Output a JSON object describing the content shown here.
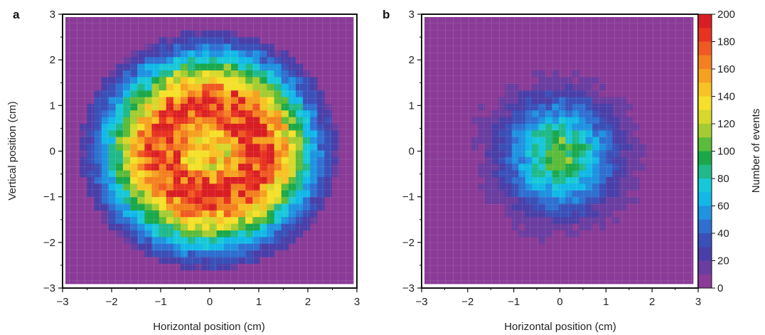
{
  "chart_data": [
    {
      "panel": "a",
      "type": "heatmap",
      "xlabel": "Horizontal position  (cm)",
      "ylabel": "Vertical position (cm)",
      "xlim": [
        -3,
        3
      ],
      "ylim": [
        -3,
        3
      ],
      "x_ticks": [
        "−3",
        "−2",
        "−1",
        "0",
        "1",
        "2",
        "3"
      ],
      "y_ticks": [
        "3",
        "2",
        "1",
        "0",
        "−1",
        "−2",
        "−3"
      ],
      "distribution": {
        "shape": "ring",
        "peak_value": 185,
        "ring_radius_cm": 1.0,
        "center_value": 150,
        "width_cm": 0.8,
        "background": 0
      },
      "grid": true
    },
    {
      "panel": "b",
      "type": "heatmap",
      "xlabel": "Horizontal position  (cm)",
      "ylabel": "",
      "xlim": [
        -3,
        3
      ],
      "ylim": [
        -3,
        3
      ],
      "x_ticks": [
        "−3",
        "−2",
        "−1",
        "0",
        "1",
        "2",
        "3"
      ],
      "y_ticks": [
        "3",
        "2",
        "1",
        "0",
        "−1",
        "−2",
        "−3"
      ],
      "distribution": {
        "shape": "gaussian",
        "peak_value": 100,
        "center_cm": [
          0.0,
          -0.1
        ],
        "sigma_cm": 0.85,
        "background": 0
      },
      "grid": true
    }
  ],
  "colorbar": {
    "label": "Number of events",
    "min": 0,
    "max": 200,
    "ticks": [
      "200",
      "180",
      "160",
      "140",
      "120",
      "100",
      "80",
      "60",
      "40",
      "20",
      "0"
    ],
    "colors": [
      "#8a3b97",
      "#6a3da0",
      "#4a3fa8",
      "#3a50b8",
      "#2f6fd0",
      "#1f92e0",
      "#12b8e8",
      "#18c8d8",
      "#20b98a",
      "#1aa84a",
      "#5bbb3a",
      "#a4cc32",
      "#d6d82c",
      "#f5e02a",
      "#f8c225",
      "#f6a020",
      "#f38020",
      "#ee5a22",
      "#e83322",
      "#d81e24"
    ]
  }
}
